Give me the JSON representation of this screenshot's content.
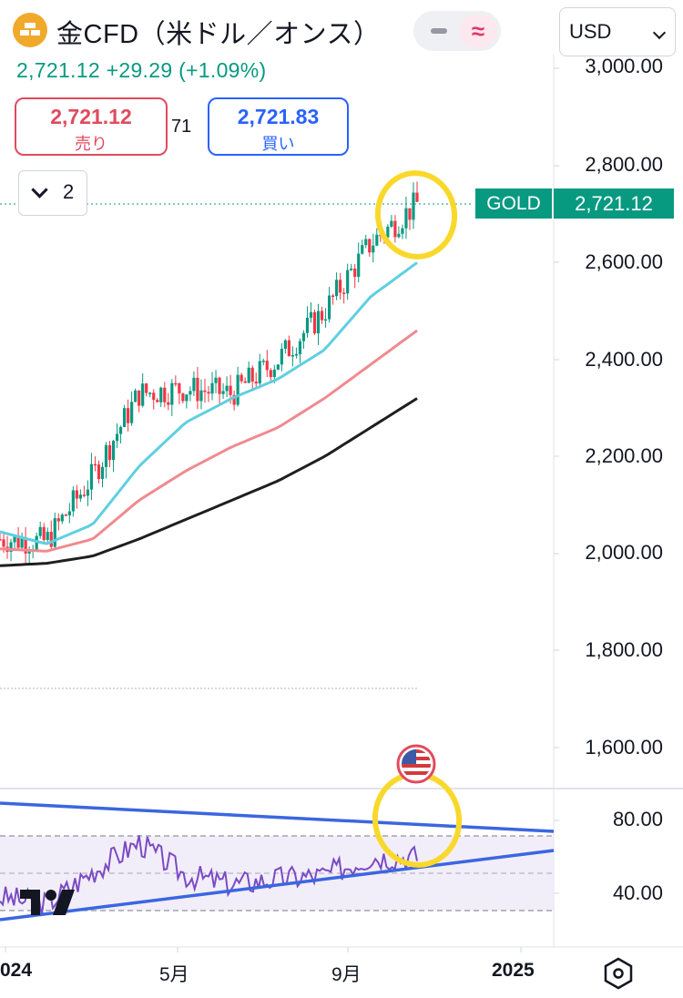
{
  "header": {
    "title": "金CFD（米ドル／オンス）",
    "price_line": "2,721.12  +29.29 (+1.09%)",
    "currency": "USD",
    "sell_price": "2,721.12",
    "sell_label": "売り",
    "spread": "71",
    "buy_price": "2,721.83",
    "buy_label": "買い",
    "indicator_count": "2"
  },
  "price_scale": {
    "ticks": [
      "3,000.00",
      "2,800.00",
      "2,600.00",
      "2,400.00",
      "2,200.00",
      "2,000.00",
      "1,800.00",
      "1,600.00"
    ],
    "symbol_tag": "GOLD",
    "current_price": "2,721.12"
  },
  "rsi_scale": {
    "ticks": [
      "80.00",
      "40.00"
    ]
  },
  "time_axis": {
    "labels": [
      "024",
      "5月",
      "9月",
      "2025"
    ]
  },
  "colors": {
    "up": "#089981",
    "down": "#f23645",
    "ma_fast": "#5fcfe0",
    "ma_mid": "#f08a8f",
    "ma_slow": "#1f1f1f",
    "rsi": "#7b4bc4",
    "trendline": "#3b66e0",
    "highlight": "#f9d82c"
  },
  "icons": [
    "gold-bars-icon",
    "minus-icon",
    "approx-icon",
    "chevron-down-icon",
    "us-flag-icon",
    "settings-icon",
    "tradingview-logo"
  ],
  "chart_data": [
    {
      "type": "candlestick",
      "title": "",
      "ylim": [
        1500,
        3050
      ],
      "x": [
        "2024-01",
        "2024-02",
        "2024-03",
        "2024-04",
        "2024-05",
        "2024-06",
        "2024-07",
        "2024-08",
        "2024-09",
        "2024-10"
      ],
      "series": [
        {
          "values": [
            2030,
            2025,
            2160,
            2330,
            2340,
            2330,
            2400,
            2500,
            2640,
            2721
          ]
        },
        {
          "values": [
            2045,
            2020,
            2060,
            2180,
            2270,
            2320,
            2360,
            2420,
            2530,
            2600
          ]
        },
        {
          "values": [
            2010,
            2005,
            2030,
            2110,
            2170,
            2220,
            2260,
            2320,
            2390,
            2460
          ]
        },
        {
          "values": [
            1975,
            1980,
            1995,
            2030,
            2070,
            2110,
            2150,
            2200,
            2260,
            2320
          ]
        }
      ]
    },
    {
      "type": "line",
      "title": "",
      "ylim": [
        20,
        90
      ],
      "x": [
        "2024-01",
        "2024-02",
        "2024-03",
        "2024-04",
        "2024-05",
        "2024-06",
        "2024-07",
        "2024-08",
        "2024-09",
        "2024-10"
      ],
      "series": [
        {
          "values": [
            48,
            44,
            62,
            78,
            60,
            55,
            58,
            60,
            70,
            70
          ]
        }
      ]
    }
  ]
}
